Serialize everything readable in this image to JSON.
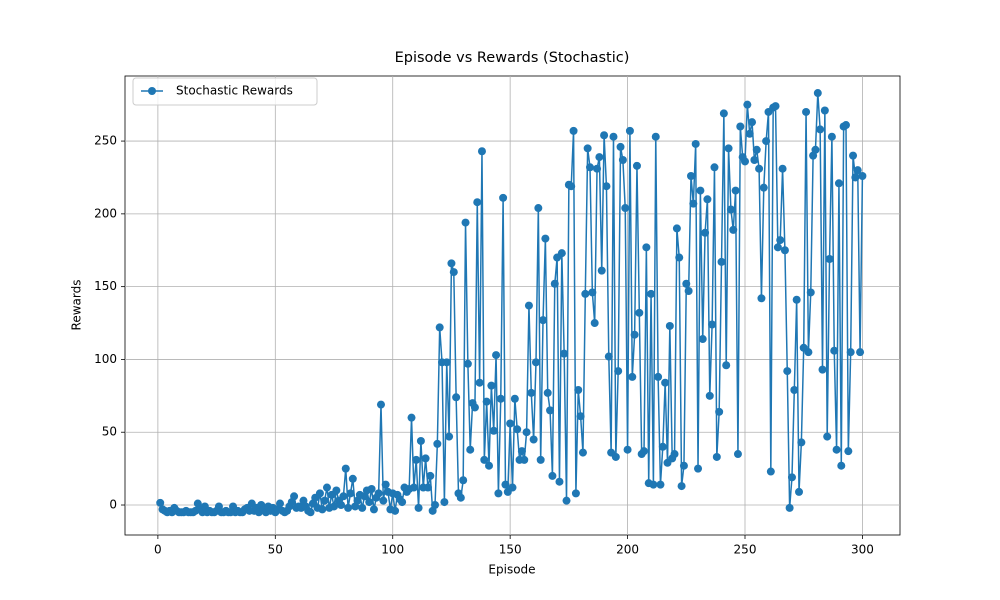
{
  "chart_data": {
    "type": "line",
    "title": "Episode vs Rewards (Stochastic)",
    "x_label": "Episode",
    "y_label": "Rewards",
    "xlim": [
      -14,
      316
    ],
    "ylim": [
      -20.6,
      294.7
    ],
    "xticks": [
      0,
      50,
      100,
      150,
      200,
      250,
      300
    ],
    "yticks": [
      0,
      50,
      100,
      150,
      200,
      250
    ],
    "grid": true,
    "legend": "upper left",
    "x": [
      1,
      2,
      3,
      4,
      5,
      6,
      7,
      8,
      9,
      10,
      11,
      12,
      13,
      14,
      15,
      16,
      17,
      18,
      19,
      20,
      21,
      22,
      23,
      24,
      25,
      26,
      27,
      28,
      29,
      30,
      31,
      32,
      33,
      34,
      35,
      36,
      37,
      38,
      39,
      40,
      41,
      42,
      43,
      44,
      45,
      46,
      47,
      48,
      49,
      50,
      51,
      52,
      53,
      54,
      55,
      56,
      57,
      58,
      59,
      60,
      61,
      62,
      63,
      64,
      65,
      66,
      67,
      68,
      69,
      70,
      71,
      72,
      73,
      74,
      75,
      76,
      77,
      78,
      79,
      80,
      81,
      82,
      83,
      84,
      85,
      86,
      87,
      88,
      89,
      90,
      91,
      92,
      93,
      94,
      95,
      96,
      97,
      98,
      99,
      100,
      101,
      102,
      103,
      104,
      105,
      106,
      107,
      108,
      109,
      110,
      111,
      112,
      113,
      114,
      115,
      116,
      117,
      118,
      119,
      120,
      121,
      122,
      123,
      124,
      125,
      126,
      127,
      128,
      129,
      130,
      131,
      132,
      133,
      134,
      135,
      136,
      137,
      138,
      139,
      140,
      141,
      142,
      143,
      144,
      145,
      146,
      147,
      148,
      149,
      150,
      151,
      152,
      153,
      154,
      155,
      156,
      157,
      158,
      159,
      160,
      161,
      162,
      163,
      164,
      165,
      166,
      167,
      168,
      169,
      170,
      171,
      172,
      173,
      174,
      175,
      176,
      177,
      178,
      179,
      180,
      181,
      182,
      183,
      184,
      185,
      186,
      187,
      188,
      189,
      190,
      191,
      192,
      193,
      194,
      195,
      196,
      197,
      198,
      199,
      200,
      201,
      202,
      203,
      204,
      205,
      206,
      207,
      208,
      209,
      210,
      211,
      212,
      213,
      214,
      215,
      216,
      217,
      218,
      219,
      220,
      221,
      222,
      223,
      224,
      225,
      226,
      227,
      228,
      229,
      230,
      231,
      232,
      233,
      234,
      235,
      236,
      237,
      238,
      239,
      240,
      241,
      242,
      243,
      244,
      245,
      246,
      247,
      248,
      249,
      250,
      251,
      252,
      253,
      254,
      255,
      256,
      257,
      258,
      259,
      260,
      261,
      262,
      263,
      264,
      265,
      266,
      267,
      268,
      269,
      270,
      271,
      272,
      273,
      274,
      275,
      276,
      277,
      278,
      279,
      280,
      281,
      282,
      283,
      284,
      285,
      286,
      287,
      288,
      289,
      290,
      291,
      292,
      293,
      294,
      295,
      296,
      297,
      298,
      299,
      300
    ],
    "series": [
      {
        "name": "Stochastic Rewards",
        "color": "#1f77b4",
        "values": [
          1.5,
          -3,
          -4,
          -5,
          -4,
          -5,
          -2,
          -4,
          -5,
          -5,
          -5,
          -4,
          -5,
          -5,
          -5,
          -4,
          1,
          -3,
          -5,
          -1,
          -5,
          -4,
          -5,
          -5,
          -4,
          -1,
          -5,
          -5,
          -4,
          -5,
          -5,
          -1,
          -5,
          -4,
          -5,
          -5,
          -3,
          -2,
          -4,
          1,
          -4,
          -2,
          -5,
          0,
          -3,
          -5,
          -1,
          -4,
          -2,
          -5,
          -3,
          1,
          -4,
          -5,
          -4,
          -1,
          2,
          6,
          -2,
          -1,
          -2,
          3,
          -1,
          -4,
          -5,
          1,
          5,
          -2,
          8,
          -3,
          3,
          12,
          -2,
          7,
          -1,
          10,
          3,
          0,
          6,
          25,
          -2,
          8,
          18,
          -1,
          3,
          7,
          -2,
          6,
          10,
          2,
          11,
          -3,
          5,
          8,
          69,
          3,
          14,
          9,
          -3,
          8,
          -4,
          7,
          4,
          2,
          12,
          9,
          11,
          60,
          12,
          31,
          -2,
          44,
          12,
          32,
          12,
          20,
          -4,
          0,
          42,
          122,
          98,
          2,
          98,
          47,
          166,
          160,
          74,
          8,
          5,
          17,
          194,
          97,
          38,
          70,
          67,
          208,
          84,
          243,
          31,
          71,
          27,
          82,
          51,
          103,
          8,
          73,
          211,
          14,
          9,
          56,
          12,
          73,
          52,
          31,
          37,
          31,
          50,
          137,
          77,
          45,
          98,
          204,
          31,
          127,
          183,
          77,
          65,
          20,
          152,
          170,
          16,
          173,
          104,
          3,
          220,
          219,
          257,
          8,
          79,
          61,
          36,
          145,
          245,
          232,
          146,
          125,
          231,
          239,
          161,
          254,
          219,
          102,
          36,
          253,
          33,
          92,
          246,
          237,
          204,
          38,
          257,
          88,
          117,
          233,
          132,
          35,
          37,
          177,
          15,
          145,
          14,
          253,
          88,
          14,
          40,
          84,
          29,
          123,
          32,
          35,
          190,
          170,
          13,
          27,
          152,
          147,
          226,
          207,
          248,
          25,
          216,
          114,
          187,
          210,
          75,
          124,
          232,
          33,
          64,
          167,
          269,
          96,
          245,
          203,
          189,
          216,
          35,
          260,
          239,
          236,
          275,
          255,
          263,
          237,
          244,
          231,
          142,
          218,
          250,
          270,
          23,
          273,
          274,
          177,
          182,
          231,
          175,
          92,
          -2,
          19,
          79,
          141,
          9,
          43,
          108,
          270,
          105,
          146,
          240,
          244,
          283,
          258,
          93,
          271,
          47,
          169,
          253,
          106,
          38,
          221,
          27,
          260,
          261,
          37,
          105,
          240,
          225,
          230,
          105,
          226
        ]
      }
    ]
  }
}
